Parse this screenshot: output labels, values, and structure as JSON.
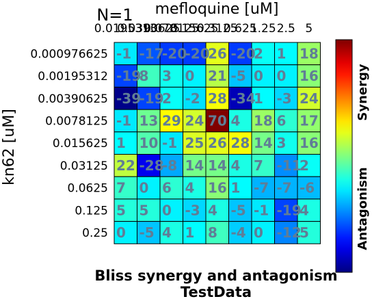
{
  "chart_data": {
    "type": "heatmap",
    "title": "N=1",
    "xlabel": "mefloquine [uM]",
    "ylabel": "kn62 [uM]",
    "x_ticks": [
      "0.0195313",
      "0.0390625",
      "0.078125",
      "0.15625",
      "0.3125",
      "0.625",
      "1.25",
      "2.5",
      "5"
    ],
    "y_ticks": [
      "0.000976625",
      "0.00195312",
      "0.00390625",
      "0.0078125",
      "0.015625",
      "0.03125",
      "0.0625",
      "0.125",
      "0.25"
    ],
    "values": [
      [
        -1,
        -17,
        -20,
        -20,
        26,
        -20,
        2,
        1,
        18
      ],
      [
        -19,
        8,
        3,
        0,
        21,
        -5,
        0,
        0,
        16
      ],
      [
        -39,
        -19,
        2,
        -2,
        28,
        -34,
        1,
        -3,
        24
      ],
      [
        -1,
        13,
        29,
        24,
        70,
        4,
        18,
        6,
        17
      ],
      [
        1,
        10,
        -1,
        25,
        26,
        28,
        14,
        3,
        16
      ],
      [
        22,
        -28,
        -8,
        14,
        14,
        4,
        7,
        -11,
        2
      ],
      [
        7,
        0,
        6,
        4,
        16,
        1,
        -7,
        -7,
        -6
      ],
      [
        5,
        5,
        0,
        -3,
        4,
        -5,
        -1,
        -19,
        4
      ],
      [
        0,
        -5,
        4,
        1,
        8,
        -4,
        0,
        -12,
        5
      ]
    ],
    "value_labels": [
      [
        "-1",
        "-17",
        "-20",
        "-20",
        "26",
        "-20",
        "2",
        "1",
        "18"
      ],
      [
        "-19",
        "8",
        "3",
        "0",
        "21",
        "-5",
        "0",
        "0",
        "16"
      ],
      [
        "-39",
        "-19",
        "2",
        "-2",
        "28",
        "-34",
        "1",
        "-3",
        "24"
      ],
      [
        "-1",
        "13",
        "29",
        "24",
        "70",
        "4",
        "18",
        "6",
        "17"
      ],
      [
        "1",
        "10",
        "-1",
        "25",
        "26",
        "28",
        "14",
        "3",
        "16"
      ],
      [
        "22",
        "-28",
        "-8",
        "14",
        "14",
        "4",
        "7",
        "-11",
        "2"
      ],
      [
        "7",
        "0",
        "6",
        "4",
        "16",
        "1",
        "-7",
        "-7",
        "-6"
      ],
      [
        "5",
        "5",
        "0",
        "-3",
        "4",
        "-5",
        "-1",
        "-19",
        "4"
      ],
      [
        "0",
        "-5",
        "4",
        "1",
        "8",
        "-4",
        "0",
        "-12",
        "5"
      ]
    ],
    "color_range": [
      -40,
      70
    ],
    "colorbar": {
      "top_label": "Synergy",
      "bottom_label": "Antagonism"
    },
    "bottom_title": [
      "Bliss synergy and antagonism",
      "TestData"
    ]
  }
}
